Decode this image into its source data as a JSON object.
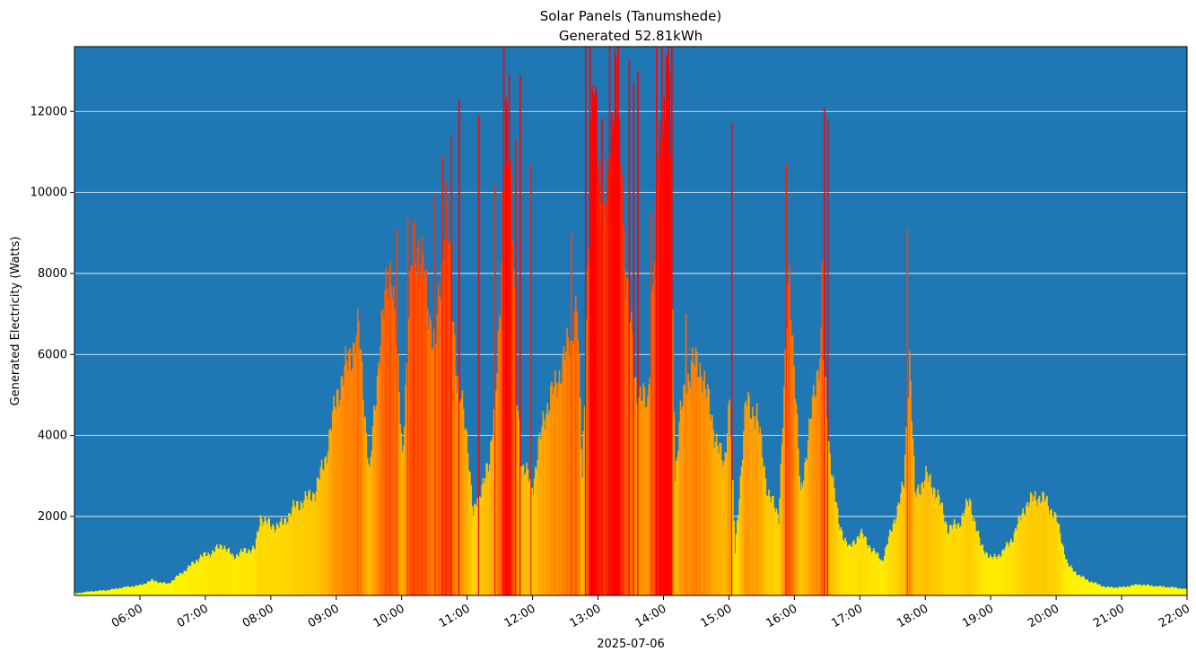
{
  "chart_data": {
    "type": "bar",
    "title": "Solar Panels (Tanumshede)",
    "subtitle": "Generated 52.81kWh",
    "xlabel": "2025-07-06",
    "ylabel": "Generated Electricity (Watts)",
    "x_range": [
      "05:00",
      "22:00"
    ],
    "x_ticks": [
      "06:00",
      "07:00",
      "08:00",
      "09:00",
      "10:00",
      "11:00",
      "12:00",
      "13:00",
      "14:00",
      "15:00",
      "16:00",
      "17:00",
      "18:00",
      "19:00",
      "20:00",
      "21:00",
      "22:00"
    ],
    "ylim": [
      50,
      13600
    ],
    "y_ticks": [
      2000,
      4000,
      6000,
      8000,
      10000,
      12000
    ],
    "grid": "horizontal",
    "background_color": "#1f77b4",
    "colormap": [
      "#ffff00",
      "#ff8000",
      "#ff0000"
    ],
    "color_range_watts": [
      0,
      12000
    ],
    "series_keypoints": [
      [
        "05:00",
        100
      ],
      [
        "05:15",
        150
      ],
      [
        "05:30",
        180
      ],
      [
        "05:45",
        250
      ],
      [
        "06:00",
        300
      ],
      [
        "06:10",
        420
      ],
      [
        "06:25",
        330
      ],
      [
        "06:40",
        650
      ],
      [
        "06:55",
        1000
      ],
      [
        "07:05",
        1100
      ],
      [
        "07:15",
        1300
      ],
      [
        "07:25",
        1000
      ],
      [
        "07:35",
        1150
      ],
      [
        "07:45",
        1200
      ],
      [
        "07:50",
        2000
      ],
      [
        "08:00",
        1750
      ],
      [
        "08:10",
        1800
      ],
      [
        "08:20",
        2200
      ],
      [
        "08:30",
        2400
      ],
      [
        "08:40",
        2600
      ],
      [
        "08:50",
        3500
      ],
      [
        "09:00",
        5000
      ],
      [
        "09:10",
        5800
      ],
      [
        "09:20",
        6600
      ],
      [
        "09:30",
        3000
      ],
      [
        "09:40",
        6500
      ],
      [
        "09:50",
        8400
      ],
      [
        "10:00",
        3500
      ],
      [
        "10:10",
        9000
      ],
      [
        "10:20",
        8000
      ],
      [
        "10:30",
        6000
      ],
      [
        "10:40",
        9800
      ],
      [
        "10:50",
        5500
      ],
      [
        "11:00",
        3800
      ],
      [
        "11:05",
        2000
      ],
      [
        "11:15",
        3000
      ],
      [
        "11:20",
        3200
      ],
      [
        "11:30",
        7000
      ],
      [
        "11:35",
        12500
      ],
      [
        "11:40",
        10000
      ],
      [
        "11:45",
        5000
      ],
      [
        "11:50",
        3200
      ],
      [
        "12:00",
        2800
      ],
      [
        "12:10",
        4500
      ],
      [
        "12:20",
        5200
      ],
      [
        "12:30",
        6000
      ],
      [
        "12:40",
        7200
      ],
      [
        "12:45",
        3000
      ],
      [
        "12:55",
        12800
      ],
      [
        "13:05",
        9000
      ],
      [
        "13:15",
        12900
      ],
      [
        "13:25",
        8000
      ],
      [
        "13:35",
        5000
      ],
      [
        "13:45",
        4800
      ],
      [
        "13:55",
        11000
      ],
      [
        "14:05",
        13000
      ],
      [
        "14:10",
        3000
      ],
      [
        "14:15",
        4500
      ],
      [
        "14:25",
        5800
      ],
      [
        "14:35",
        5600
      ],
      [
        "14:45",
        4200
      ],
      [
        "14:55",
        3200
      ],
      [
        "15:00",
        5000
      ],
      [
        "15:05",
        1100
      ],
      [
        "15:15",
        4800
      ],
      [
        "15:25",
        4500
      ],
      [
        "15:35",
        2600
      ],
      [
        "15:45",
        2000
      ],
      [
        "15:55",
        8000
      ],
      [
        "16:05",
        2500
      ],
      [
        "16:15",
        4500
      ],
      [
        "16:25",
        6500
      ],
      [
        "16:30",
        4000
      ],
      [
        "16:40",
        1800
      ],
      [
        "16:50",
        1200
      ],
      [
        "17:00",
        1600
      ],
      [
        "17:10",
        1200
      ],
      [
        "17:20",
        900
      ],
      [
        "17:30",
        1800
      ],
      [
        "17:40",
        2800
      ],
      [
        "17:45",
        6000
      ],
      [
        "17:50",
        2500
      ],
      [
        "18:00",
        3000
      ],
      [
        "18:10",
        2600
      ],
      [
        "18:20",
        1700
      ],
      [
        "18:30",
        1800
      ],
      [
        "18:40",
        2400
      ],
      [
        "18:50",
        1300
      ],
      [
        "19:00",
        950
      ],
      [
        "19:10",
        1100
      ],
      [
        "19:20",
        1500
      ],
      [
        "19:30",
        2200
      ],
      [
        "19:40",
        2500
      ],
      [
        "19:50",
        2400
      ],
      [
        "20:00",
        1900
      ],
      [
        "20:10",
        800
      ],
      [
        "20:20",
        550
      ],
      [
        "20:30",
        400
      ],
      [
        "20:45",
        250
      ],
      [
        "21:00",
        250
      ],
      [
        "21:15",
        320
      ],
      [
        "21:30",
        280
      ],
      [
        "21:45",
        250
      ],
      [
        "22:00",
        200
      ]
    ],
    "spikes": [
      [
        "09:55",
        9100
      ],
      [
        "10:05",
        9400
      ],
      [
        "10:15",
        8800
      ],
      [
        "10:30",
        9950
      ],
      [
        "10:37",
        10900
      ],
      [
        "10:45",
        11400
      ],
      [
        "10:52",
        12300
      ],
      [
        "11:10",
        11900
      ],
      [
        "11:25",
        10200
      ],
      [
        "11:33",
        13600
      ],
      [
        "11:38",
        12900
      ],
      [
        "11:44",
        11300
      ],
      [
        "11:48",
        12900
      ],
      [
        "11:58",
        10700
      ],
      [
        "12:35",
        9000
      ],
      [
        "12:48",
        13600
      ],
      [
        "12:52",
        13600
      ],
      [
        "12:58",
        12500
      ],
      [
        "13:03",
        11800
      ],
      [
        "13:10",
        13600
      ],
      [
        "13:18",
        13600
      ],
      [
        "13:22",
        10400
      ],
      [
        "13:28",
        13300
      ],
      [
        "13:32",
        12700
      ],
      [
        "13:36",
        13000
      ],
      [
        "13:48",
        9500
      ],
      [
        "13:53",
        13600
      ],
      [
        "13:58",
        13600
      ],
      [
        "14:02",
        13400
      ],
      [
        "14:07",
        13600
      ],
      [
        "14:20",
        7000
      ],
      [
        "15:02",
        11700
      ],
      [
        "15:52",
        10700
      ],
      [
        "16:25",
        8300
      ],
      [
        "16:27",
        12100
      ],
      [
        "16:30",
        11800
      ],
      [
        "17:43",
        9100
      ]
    ]
  }
}
